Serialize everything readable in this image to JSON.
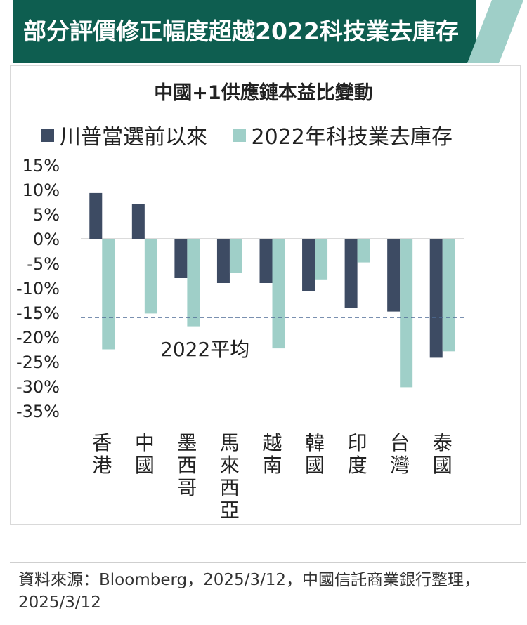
{
  "banner": {
    "title": "部分評價修正幅度超越2022科技業去庫存"
  },
  "colors": {
    "banner": "#0e5e50",
    "stripe": "#9fcfc8",
    "series_dark": "#3d4b63",
    "series_light": "#9fcfc8",
    "avg_line": "#4e6c96"
  },
  "chart_data": {
    "type": "bar",
    "title": "中國+1供應鏈本益比變動",
    "categories": [
      "香港",
      "中國",
      "墨西哥",
      "馬來西亞",
      "越南",
      "韓國",
      "印度",
      "台灣",
      "泰國"
    ],
    "series": [
      {
        "name": "川普當選前以來",
        "values": [
          9.3,
          7.0,
          -8.0,
          -9.0,
          -9.0,
          -10.7,
          -14.0,
          -14.8,
          -24.2
        ]
      },
      {
        "name": "2022年科技業去庫存",
        "values": [
          -22.5,
          -15.2,
          -17.8,
          -7.0,
          -22.3,
          -8.4,
          -4.8,
          -30.2,
          -22.9
        ]
      }
    ],
    "yticks": [
      "15%",
      "10%",
      "5%",
      "0%",
      "-5%",
      "-10%",
      "-15%",
      "-20%",
      "-25%",
      "-30%",
      "-35%"
    ],
    "ylim": [
      -35,
      15
    ],
    "reference_line": {
      "label": "2022平均",
      "value": -16.0
    },
    "legend_position": "top"
  },
  "footer": {
    "source": "資料來源：Bloomberg，2025/3/12，中國信託商業銀行整理，2025/3/12"
  }
}
